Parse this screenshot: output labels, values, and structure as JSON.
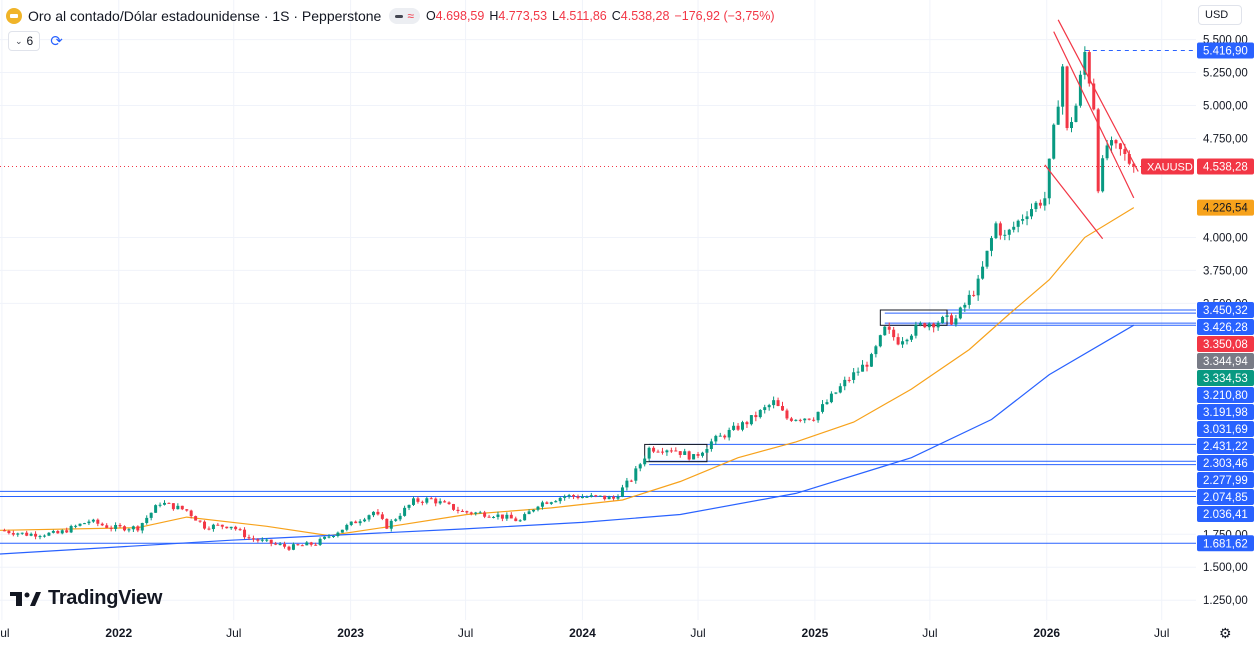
{
  "header": {
    "title": "Oro al contado/Dólar estadounidense · 1S · Pepperstone",
    "ohlc": [
      {
        "k": "O",
        "v": "4.698,59"
      },
      {
        "k": "H",
        "v": "4.773,53"
      },
      {
        "k": "L",
        "v": "4.511,86"
      },
      {
        "k": "C",
        "v": "4.538,28"
      }
    ],
    "change": "−176,92 (−3,75%)",
    "indicators_count": "6",
    "currency": "USD"
  },
  "brand": "TradingView",
  "colors": {
    "up": "#089981",
    "down": "#f23645",
    "ma_fast": "#f7a21b",
    "ma_slow": "#2962ff",
    "level_line": "#2962ff",
    "trend_line": "#f23645",
    "grid": "#f0f3fa"
  },
  "icons": [
    "gold-symbol-icon",
    "chevron-down-icon",
    "refresh-icon",
    "gear-icon"
  ],
  "chart_data": {
    "type": "candlestick",
    "symbol": "XAUUSD",
    "interval": "1S",
    "ylim": [
      1100,
      5800
    ],
    "xlim": [
      "2021-06-28",
      "2026-08-24"
    ],
    "y_ticks": [
      {
        "v": 5500,
        "label": "5.500,00"
      },
      {
        "v": 5250,
        "label": "5.250,00"
      },
      {
        "v": 5000,
        "label": "5.000,00"
      },
      {
        "v": 4750,
        "label": "4.750,00"
      },
      {
        "v": 4000,
        "label": "4.000,00"
      },
      {
        "v": 3750,
        "label": "3.750,00"
      },
      {
        "v": 3500,
        "label": "3.500,00"
      },
      {
        "v": 1750,
        "label": "1.750,00"
      },
      {
        "v": 1500,
        "label": "1.500,00"
      },
      {
        "v": 1250,
        "label": "1.250,00"
      }
    ],
    "x_ticks": [
      {
        "date": "2021-07-01",
        "label": "Jul"
      },
      {
        "date": "2022-01-01",
        "label": "2022"
      },
      {
        "date": "2022-07-01",
        "label": "Jul"
      },
      {
        "date": "2023-01-01",
        "label": "2023"
      },
      {
        "date": "2023-07-01",
        "label": "Jul"
      },
      {
        "date": "2024-01-01",
        "label": "2024"
      },
      {
        "date": "2024-07-01",
        "label": "Jul"
      },
      {
        "date": "2025-01-01",
        "label": "2025"
      },
      {
        "date": "2025-07-01",
        "label": "Jul"
      },
      {
        "date": "2026-01-01",
        "label": "2026"
      },
      {
        "date": "2026-07-01",
        "label": "Jul"
      }
    ],
    "close_path": [
      [
        "2021-06-28",
        1780
      ],
      [
        "2021-08-09",
        1750
      ],
      [
        "2021-09-27",
        1755
      ],
      [
        "2021-11-15",
        1850
      ],
      [
        "2021-12-20",
        1800
      ],
      [
        "2022-01-31",
        1800
      ],
      [
        "2022-03-07",
        1990
      ],
      [
        "2022-04-18",
        1930
      ],
      [
        "2022-05-16",
        1810
      ],
      [
        "2022-06-27",
        1815
      ],
      [
        "2022-07-25",
        1720
      ],
      [
        "2022-09-26",
        1650
      ],
      [
        "2022-11-07",
        1680
      ],
      [
        "2022-12-26",
        1810
      ],
      [
        "2023-02-06",
        1920
      ],
      [
        "2023-02-27",
        1810
      ],
      [
        "2023-04-10",
        2000
      ],
      [
        "2023-05-08",
        2015
      ],
      [
        "2023-06-26",
        1920
      ],
      [
        "2023-08-14",
        1900
      ],
      [
        "2023-09-25",
        1850
      ],
      [
        "2023-10-23",
        1980
      ],
      [
        "2023-12-04",
        2040
      ],
      [
        "2024-01-29",
        2030
      ],
      [
        "2024-02-19",
        2020
      ],
      [
        "2024-03-18",
        2170
      ],
      [
        "2024-04-15",
        2400
      ],
      [
        "2024-05-20",
        2400
      ],
      [
        "2024-06-24",
        2330
      ],
      [
        "2024-07-22",
        2450
      ],
      [
        "2024-09-16",
        2600
      ],
      [
        "2024-10-28",
        2750
      ],
      [
        "2024-11-18",
        2630
      ],
      [
        "2024-12-30",
        2640
      ],
      [
        "2025-02-17",
        2900
      ],
      [
        "2025-03-31",
        3080
      ],
      [
        "2025-04-21",
        3300
      ],
      [
        "2025-05-12",
        3220
      ],
      [
        "2025-06-23",
        3350
      ],
      [
        "2025-08-11",
        3380
      ],
      [
        "2025-09-15",
        3650
      ],
      [
        "2025-10-13",
        4100
      ],
      [
        "2025-10-27",
        4000
      ],
      [
        "2025-12-01",
        4200
      ],
      [
        "2025-12-29",
        4300
      ],
      [
        "2026-01-26",
        5300
      ],
      [
        "2026-02-02",
        4800
      ],
      [
        "2026-02-16",
        5000
      ],
      [
        "2026-03-02",
        5400
      ],
      [
        "2026-03-16",
        5000
      ],
      [
        "2026-03-23",
        4400
      ],
      [
        "2026-04-06",
        4700
      ],
      [
        "2026-04-27",
        4650
      ],
      [
        "2026-05-18",
        4538
      ]
    ],
    "candles_mode": "weekly (interpolated from close path)",
    "series": [
      {
        "name": "MA (fast)",
        "color": "#f7a21b",
        "points": [
          [
            "2021-06-28",
            1780
          ],
          [
            "2022-01-31",
            1800
          ],
          [
            "2022-04-18",
            1880
          ],
          [
            "2022-08-22",
            1810
          ],
          [
            "2022-11-28",
            1740
          ],
          [
            "2023-03-06",
            1810
          ],
          [
            "2023-07-03",
            1900
          ],
          [
            "2023-11-13",
            1950
          ],
          [
            "2024-03-04",
            2010
          ],
          [
            "2024-06-03",
            2150
          ],
          [
            "2024-09-02",
            2330
          ],
          [
            "2024-12-02",
            2450
          ],
          [
            "2025-03-03",
            2600
          ],
          [
            "2025-06-02",
            2850
          ],
          [
            "2025-09-01",
            3150
          ],
          [
            "2025-11-03",
            3420
          ],
          [
            "2026-01-05",
            3680
          ],
          [
            "2026-03-02",
            4000
          ],
          [
            "2026-05-18",
            4226
          ]
        ]
      },
      {
        "name": "MA (slow)",
        "color": "#2962ff",
        "points": [
          [
            "2021-06-28",
            1600
          ],
          [
            "2022-06-27",
            1705
          ],
          [
            "2023-06-26",
            1790
          ],
          [
            "2024-01-01",
            1840
          ],
          [
            "2024-06-03",
            1900
          ],
          [
            "2024-12-02",
            2060
          ],
          [
            "2025-06-02",
            2330
          ],
          [
            "2025-10-06",
            2620
          ],
          [
            "2026-01-05",
            2960
          ],
          [
            "2026-05-18",
            3335
          ]
        ]
      }
    ],
    "levels": [
      {
        "price": 5416.9,
        "style": "dashed",
        "color": "#2962ff",
        "from": "2026-03-02"
      },
      {
        "price": 3450.32,
        "color": "#2962ff",
        "from": "2025-04-21"
      },
      {
        "price": 3426.28,
        "color": "#2962ff",
        "from": "2025-04-21"
      },
      {
        "price": 3350.08,
        "color": "#2962ff",
        "from": "2025-04-21"
      },
      {
        "price": 3334.53,
        "color": "#2962ff",
        "from": "2025-04-21"
      },
      {
        "price": 2431.22,
        "color": "#2962ff",
        "from": "2024-04-15"
      },
      {
        "price": 2303.46,
        "color": "#2962ff",
        "from": "2024-04-15"
      },
      {
        "price": 2277.99,
        "color": "#2962ff",
        "from": "2024-04-15"
      },
      {
        "price": 2074.85,
        "color": "#2962ff",
        "from": "2021-06-28"
      },
      {
        "price": 2036.41,
        "color": "#2962ff",
        "from": "2021-06-28"
      },
      {
        "price": 1681.62,
        "color": "#2962ff",
        "from": "2021-06-28"
      }
    ],
    "trend_lines": [
      {
        "from": [
          "2026-01-19",
          5650
        ],
        "to": [
          "2026-05-25",
          4500
        ]
      },
      {
        "from": [
          "2026-01-12",
          5560
        ],
        "to": [
          "2026-05-18",
          4300
        ]
      },
      {
        "from": [
          "2025-12-29",
          4550
        ],
        "to": [
          "2026-03-30",
          3990
        ]
      }
    ],
    "boxes": [
      {
        "x0": "2024-04-08",
        "x1": "2024-07-15",
        "y0": 2300,
        "y1": 2431
      },
      {
        "x0": "2025-04-14",
        "x1": "2025-07-28",
        "y0": 3334,
        "y1": 3450
      }
    ],
    "current_price_line": {
      "price": 4538.28,
      "color": "#f23645",
      "style": "dotted"
    },
    "price_labels": [
      {
        "price": 5416.9,
        "text": "5.416,90",
        "bg": "#2962ff",
        "fg": "#ffffff"
      },
      {
        "price": 4538.28,
        "text": "4.538,28",
        "tag": "XAUUSD",
        "bg": "#f23645",
        "fg": "#ffffff"
      },
      {
        "price": 4226.54,
        "text": "4.226,54",
        "bg": "#f7a21b",
        "fg": "#131722"
      },
      {
        "price": 3450.32,
        "text": "3.450,32",
        "bg": "#2962ff",
        "fg": "#ffffff"
      },
      {
        "price": 3426.28,
        "text": "3.426,28",
        "bg": "#2962ff",
        "fg": "#ffffff"
      },
      {
        "price": 3350.08,
        "text": "3.350,08",
        "bg": "#f23645",
        "fg": "#ffffff"
      },
      {
        "price": 3344.94,
        "text": "3.344,94",
        "bg": "#787b86",
        "fg": "#ffffff"
      },
      {
        "price": 3334.53,
        "text": "3.334,53",
        "bg": "#089981",
        "fg": "#ffffff"
      },
      {
        "price": 3210.8,
        "text": "3.210,80",
        "bg": "#2962ff",
        "fg": "#ffffff"
      },
      {
        "price": 3191.98,
        "text": "3.191,98",
        "bg": "#2962ff",
        "fg": "#ffffff"
      },
      {
        "price": 3031.69,
        "text": "3.031,69",
        "bg": "#2962ff",
        "fg": "#ffffff"
      },
      {
        "price": 2431.22,
        "text": "2.431,22",
        "bg": "#2962ff",
        "fg": "#ffffff"
      },
      {
        "price": 2303.46,
        "text": "2.303,46",
        "bg": "#2962ff",
        "fg": "#ffffff"
      },
      {
        "price": 2277.99,
        "text": "2.277,99",
        "bg": "#2962ff",
        "fg": "#ffffff"
      },
      {
        "price": 2074.85,
        "text": "2.074,85",
        "bg": "#2962ff",
        "fg": "#ffffff"
      },
      {
        "price": 2036.41,
        "text": "2.036,41",
        "bg": "#2962ff",
        "fg": "#ffffff"
      },
      {
        "price": 1681.62,
        "text": "1.681,62",
        "bg": "#2962ff",
        "fg": "#ffffff"
      }
    ]
  }
}
